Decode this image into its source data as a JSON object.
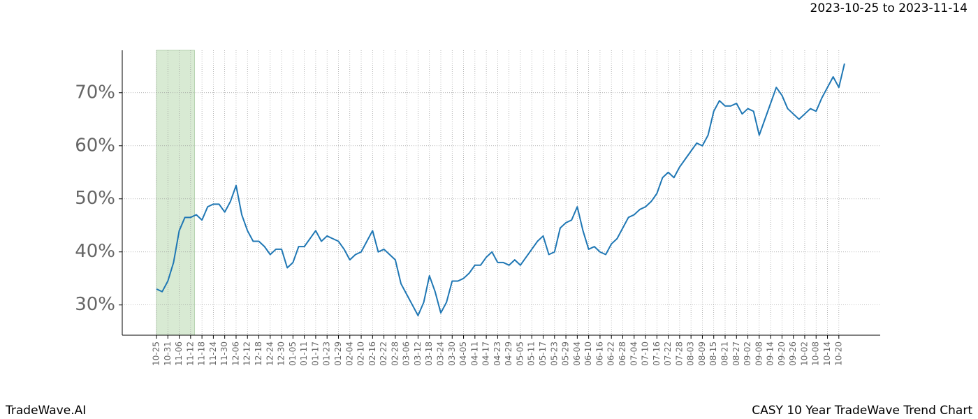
{
  "chart_data": {
    "type": "line",
    "title": "2023-10-25 to 2023-11-14",
    "footer_left": "TradeWave.AI",
    "footer_right": "CASY 10 Year TradeWave Trend Chart",
    "categories": [
      "10-25",
      null,
      "10-31",
      null,
      "11-06",
      null,
      "11-12",
      null,
      "11-18",
      null,
      "11-24",
      null,
      "11-30",
      null,
      "12-06",
      null,
      "12-12",
      null,
      "12-18",
      null,
      "12-24",
      null,
      "12-30",
      null,
      "01-05",
      null,
      "01-11",
      null,
      "01-17",
      null,
      "01-23",
      null,
      "01-29",
      null,
      "02-04",
      null,
      "02-10",
      null,
      "02-16",
      null,
      "02-22",
      null,
      "02-28",
      null,
      "03-06",
      null,
      "03-12",
      null,
      "03-18",
      null,
      "03-24",
      null,
      "03-30",
      null,
      "04-05",
      null,
      "04-11",
      null,
      "04-17",
      null,
      "04-23",
      null,
      "04-29",
      null,
      "05-05",
      null,
      "05-11",
      null,
      "05-17",
      null,
      "05-23",
      null,
      "05-29",
      null,
      "06-04",
      null,
      "06-10",
      null,
      "06-16",
      null,
      "06-22",
      null,
      "06-28",
      null,
      "07-04",
      null,
      "07-10",
      null,
      "07-16",
      null,
      "07-22",
      null,
      "07-28",
      null,
      "08-03",
      null,
      "08-09",
      null,
      "08-15",
      null,
      "08-21",
      null,
      "08-27",
      null,
      "09-02",
      null,
      "09-08",
      null,
      "09-14",
      null,
      "09-20",
      null,
      "09-26",
      null,
      "10-02",
      null,
      "10-08",
      null,
      "10-14",
      null,
      "10-20",
      null
    ],
    "values": [
      33,
      32.5,
      34.5,
      38,
      44,
      46.5,
      46.5,
      47,
      46,
      48.5,
      49,
      49,
      47.5,
      49.5,
      52.5,
      47,
      44,
      42,
      42,
      41,
      39.5,
      40.5,
      40.5,
      37,
      38,
      41,
      41,
      42.5,
      44,
      42,
      43,
      42.5,
      42,
      40.5,
      38.5,
      39.5,
      40,
      42,
      44,
      40,
      40.5,
      39.5,
      38.5,
      34,
      32,
      30,
      28,
      30.5,
      35.5,
      32.5,
      28.5,
      30.5,
      34.5,
      34.5,
      35,
      36,
      37.5,
      37.5,
      39,
      40,
      38,
      38,
      37.5,
      38.5,
      37.5,
      39,
      40.5,
      42,
      43,
      39.5,
      40,
      44.5,
      45.5,
      46,
      48.5,
      44,
      40.5,
      41,
      40,
      39.5,
      41.5,
      42.5,
      44.5,
      46.5,
      47,
      48,
      48.5,
      49.5,
      51,
      54,
      55,
      54,
      56,
      57.5,
      59,
      60.5,
      60,
      62,
      66.5,
      68.5,
      67.5,
      67.5,
      68,
      66,
      67,
      66.5,
      62,
      65,
      68,
      71,
      69.5,
      67,
      66,
      65,
      66,
      67,
      66.5,
      69,
      71,
      73,
      71,
      75.5
    ],
    "color": "#1f77b4",
    "highlight_range": [
      0,
      6.7
    ],
    "highlight_color": "#d8ead3",
    "ylim": [
      24.3,
      78
    ],
    "yticks": [
      {
        "value": 30,
        "label": "30%"
      },
      {
        "value": 40,
        "label": "40%"
      },
      {
        "value": 50,
        "label": "50%"
      },
      {
        "value": 60,
        "label": "60%"
      },
      {
        "value": 70,
        "label": "70%"
      }
    ],
    "grid": true
  }
}
